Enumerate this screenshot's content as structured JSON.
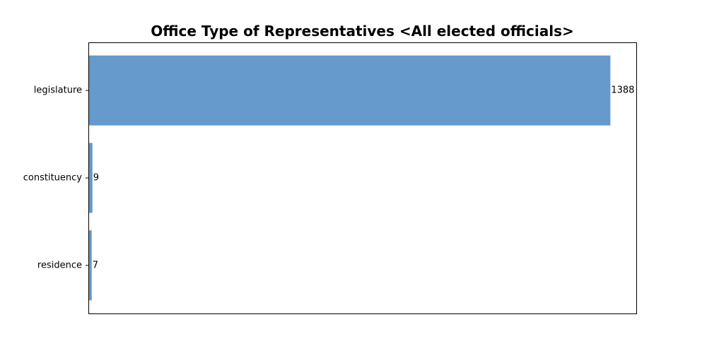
{
  "chart_data": {
    "type": "bar",
    "orientation": "horizontal",
    "title": "Office Type of Representatives <All elected officials>",
    "xlabel": "",
    "ylabel": "",
    "categories": [
      "legislature",
      "constituency",
      "residence"
    ],
    "values": [
      1388,
      9,
      7
    ],
    "data_labels": [
      "1388",
      "9",
      "7"
    ],
    "xlim": [
      0,
      1457
    ],
    "x_ticks_shown": false,
    "grid": false,
    "bar_color": "#6699cc"
  }
}
